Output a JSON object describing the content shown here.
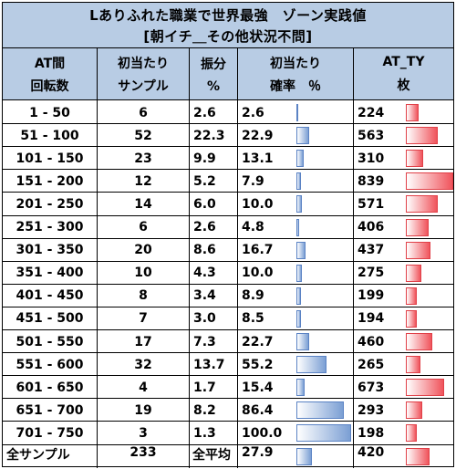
{
  "title": "Lありふれた職業で世界最強　ゾーン実践値",
  "subtitle": "[朝イチ＿その他状況不問]",
  "headers": {
    "col1": [
      "AT間",
      "回転数"
    ],
    "col2": [
      "初当たり",
      "サンプル"
    ],
    "col3": [
      "振分",
      "%"
    ],
    "col4": [
      "初当たり",
      "確率　％"
    ],
    "col5": [
      "AT_TY",
      "枚"
    ]
  },
  "chart_data": {
    "type": "table",
    "columns": [
      "AT間回転数",
      "初当たりサンプル",
      "振分%",
      "初当たり確率%",
      "AT_TY枚"
    ],
    "rows": [
      {
        "range": "1 - 50",
        "samples": "6",
        "share": "2.6",
        "rate": "2.6",
        "ty": "224"
      },
      {
        "range": "51 - 100",
        "samples": "52",
        "share": "22.3",
        "rate": "22.9",
        "ty": "563"
      },
      {
        "range": "101 - 150",
        "samples": "23",
        "share": "9.9",
        "rate": "13.1",
        "ty": "310"
      },
      {
        "range": "151 - 200",
        "samples": "12",
        "share": "5.2",
        "rate": "7.9",
        "ty": "839"
      },
      {
        "range": "201 - 250",
        "samples": "14",
        "share": "6.0",
        "rate": "10.0",
        "ty": "571"
      },
      {
        "range": "251 - 300",
        "samples": "6",
        "share": "2.6",
        "rate": "4.8",
        "ty": "406"
      },
      {
        "range": "301 - 350",
        "samples": "20",
        "share": "8.6",
        "rate": "16.7",
        "ty": "437"
      },
      {
        "range": "351 - 400",
        "samples": "10",
        "share": "4.3",
        "rate": "10.0",
        "ty": "275"
      },
      {
        "range": "401 - 450",
        "samples": "8",
        "share": "3.4",
        "rate": "8.9",
        "ty": "199"
      },
      {
        "range": "451 - 500",
        "samples": "7",
        "share": "3.0",
        "rate": "8.5",
        "ty": "194"
      },
      {
        "range": "501 - 550",
        "samples": "17",
        "share": "7.3",
        "rate": "22.7",
        "ty": "460"
      },
      {
        "range": "551 - 600",
        "samples": "32",
        "share": "13.7",
        "rate": "55.2",
        "ty": "265"
      },
      {
        "range": "601 - 650",
        "samples": "4",
        "share": "1.7",
        "rate": "15.4",
        "ty": "673"
      },
      {
        "range": "651 - 700",
        "samples": "19",
        "share": "8.2",
        "rate": "86.4",
        "ty": "293"
      },
      {
        "range": "701 - 750",
        "samples": "3",
        "share": "1.3",
        "rate": "100.0",
        "ty": "198"
      }
    ],
    "total": {
      "label": "全サンプル",
      "samples": "233",
      "avg_label": "全平均",
      "rate": "27.9",
      "ty": "420"
    },
    "rate_bar_max": 100,
    "ty_bar_max": 839,
    "colors": {
      "header_bg": "#b8cce4",
      "rate_bar": "#7b9fd4",
      "ty_bar": "#f0545c"
    }
  }
}
